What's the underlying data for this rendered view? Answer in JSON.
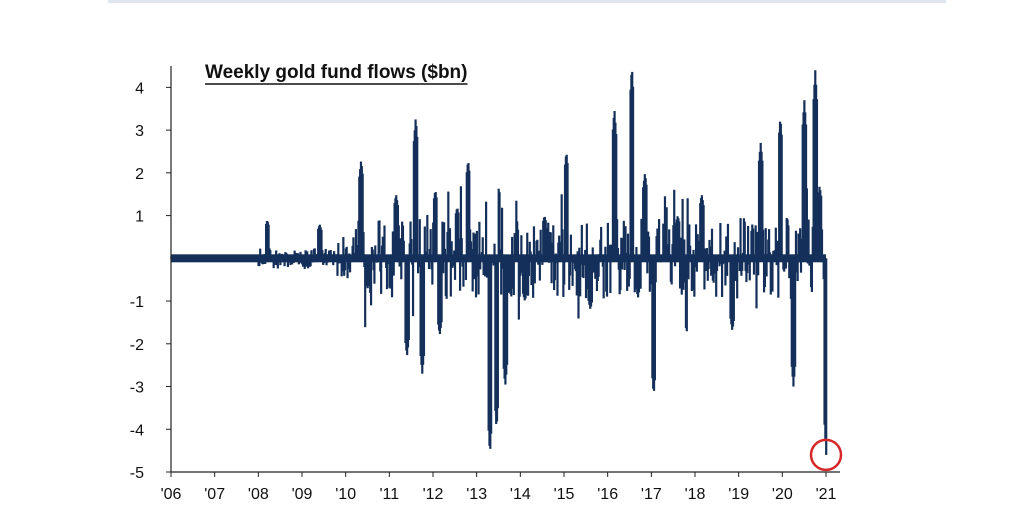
{
  "chart_data": {
    "type": "bar",
    "title": "Weekly gold fund flows ($bn)",
    "xlabel": "",
    "ylabel": "",
    "ylim": [
      -5,
      4.5
    ],
    "yticks": [
      4,
      3,
      2,
      1,
      -1,
      -2,
      -3,
      -4,
      -5
    ],
    "xticks": [
      "'06",
      "'07",
      "'08",
      "'09",
      "'10",
      "'11",
      "'12",
      "'13",
      "'14",
      "'15",
      "'16",
      "'17",
      "'18",
      "'19",
      "'20",
      "'21"
    ],
    "x_range": [
      2006.0,
      2021.0
    ],
    "grid": false,
    "legend": "none",
    "bar_color": "#14305a",
    "highlight_color": "#d62828",
    "highlight_x": 2021.0,
    "highlight_value": -4.6,
    "approx_peaks": [
      {
        "x": 2008.2,
        "value": 0.9
      },
      {
        "x": 2009.4,
        "value": 0.8
      },
      {
        "x": 2010.35,
        "value": 2.3
      },
      {
        "x": 2010.5,
        "value": -0.7
      },
      {
        "x": 2011.15,
        "value": 1.5
      },
      {
        "x": 2011.4,
        "value": -2.3
      },
      {
        "x": 2011.6,
        "value": 3.3
      },
      {
        "x": 2011.75,
        "value": -2.7
      },
      {
        "x": 2012.05,
        "value": 1.6
      },
      {
        "x": 2012.15,
        "value": -1.8
      },
      {
        "x": 2012.55,
        "value": 1.2
      },
      {
        "x": 2012.8,
        "value": 2.3
      },
      {
        "x": 2013.3,
        "value": -4.6
      },
      {
        "x": 2013.45,
        "value": -4.0
      },
      {
        "x": 2013.65,
        "value": -3.0
      },
      {
        "x": 2014.1,
        "value": -1.0
      },
      {
        "x": 2014.55,
        "value": 1.0
      },
      {
        "x": 2015.05,
        "value": 2.5
      },
      {
        "x": 2015.6,
        "value": -1.2
      },
      {
        "x": 2016.15,
        "value": 3.5
      },
      {
        "x": 2016.55,
        "value": 4.5
      },
      {
        "x": 2016.85,
        "value": 2.0
      },
      {
        "x": 2017.05,
        "value": -3.2
      },
      {
        "x": 2017.6,
        "value": 1.0
      },
      {
        "x": 2018.15,
        "value": 1.5
      },
      {
        "x": 2018.85,
        "value": -1.7
      },
      {
        "x": 2019.5,
        "value": 2.7
      },
      {
        "x": 2019.95,
        "value": 3.3
      },
      {
        "x": 2020.25,
        "value": -3.0
      },
      {
        "x": 2020.5,
        "value": 3.7
      },
      {
        "x": 2020.75,
        "value": 4.4
      },
      {
        "x": 2020.85,
        "value": 1.7
      },
      {
        "x": 2021.0,
        "value": -4.6
      }
    ]
  }
}
